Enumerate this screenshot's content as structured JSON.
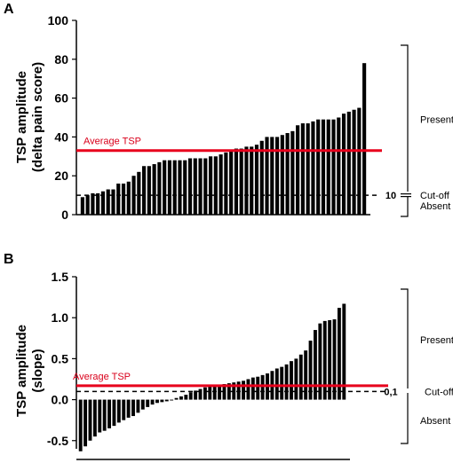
{
  "chart_data": [
    {
      "panel": "A",
      "type": "bar",
      "ylabel_lines": [
        "TSP amplitude",
        "(delta pain score)"
      ],
      "ylim": [
        0,
        100
      ],
      "yticks": [
        "0",
        "20",
        "40",
        "60",
        "80",
        "100"
      ],
      "values": [
        9,
        10,
        11,
        11,
        12,
        13,
        13,
        16,
        16,
        17,
        20,
        22,
        25,
        25,
        26,
        27,
        28,
        28,
        28,
        28,
        28,
        29,
        29,
        29,
        29,
        30,
        30,
        31,
        32,
        33,
        34,
        34,
        35,
        35,
        36,
        38,
        40,
        40,
        40,
        41,
        42,
        43,
        46,
        47,
        47,
        48,
        49,
        49,
        49,
        49,
        50,
        52,
        53,
        54,
        55,
        78
      ],
      "average": {
        "label": "Average TSP",
        "value": 33,
        "color": "#e8001c"
      },
      "cutoff": {
        "value": 10,
        "value_label": "10",
        "label": "Cut-off"
      },
      "brackets": {
        "present": "Present",
        "absent": "Absent"
      }
    },
    {
      "panel": "B",
      "type": "bar",
      "ylabel_lines": [
        "TSP amplitude",
        "(slope)"
      ],
      "ylim": [
        -0.6,
        1.5
      ],
      "yticks": [
        "-0.5",
        "0.0",
        "0.5",
        "1.0",
        "1.5"
      ],
      "values": [
        -0.63,
        -0.57,
        -0.5,
        -0.45,
        -0.4,
        -0.38,
        -0.35,
        -0.32,
        -0.28,
        -0.25,
        -0.22,
        -0.2,
        -0.16,
        -0.12,
        -0.09,
        -0.06,
        -0.04,
        -0.03,
        -0.02,
        -0.01,
        0.02,
        0.04,
        0.06,
        0.09,
        0.11,
        0.13,
        0.15,
        0.16,
        0.17,
        0.18,
        0.19,
        0.2,
        0.21,
        0.22,
        0.23,
        0.25,
        0.27,
        0.28,
        0.3,
        0.32,
        0.35,
        0.38,
        0.4,
        0.43,
        0.47,
        0.5,
        0.55,
        0.6,
        0.72,
        0.85,
        0.93,
        0.96,
        0.97,
        0.98,
        1.12,
        1.17
      ],
      "average": {
        "label": "Average TSP",
        "value": 0.17,
        "color": "#e8001c"
      },
      "cutoff": {
        "value": 0.1,
        "value_label": "0,1",
        "label": "Cut-off"
      },
      "brackets": {
        "present": "Present",
        "absent": "Absent"
      }
    }
  ]
}
